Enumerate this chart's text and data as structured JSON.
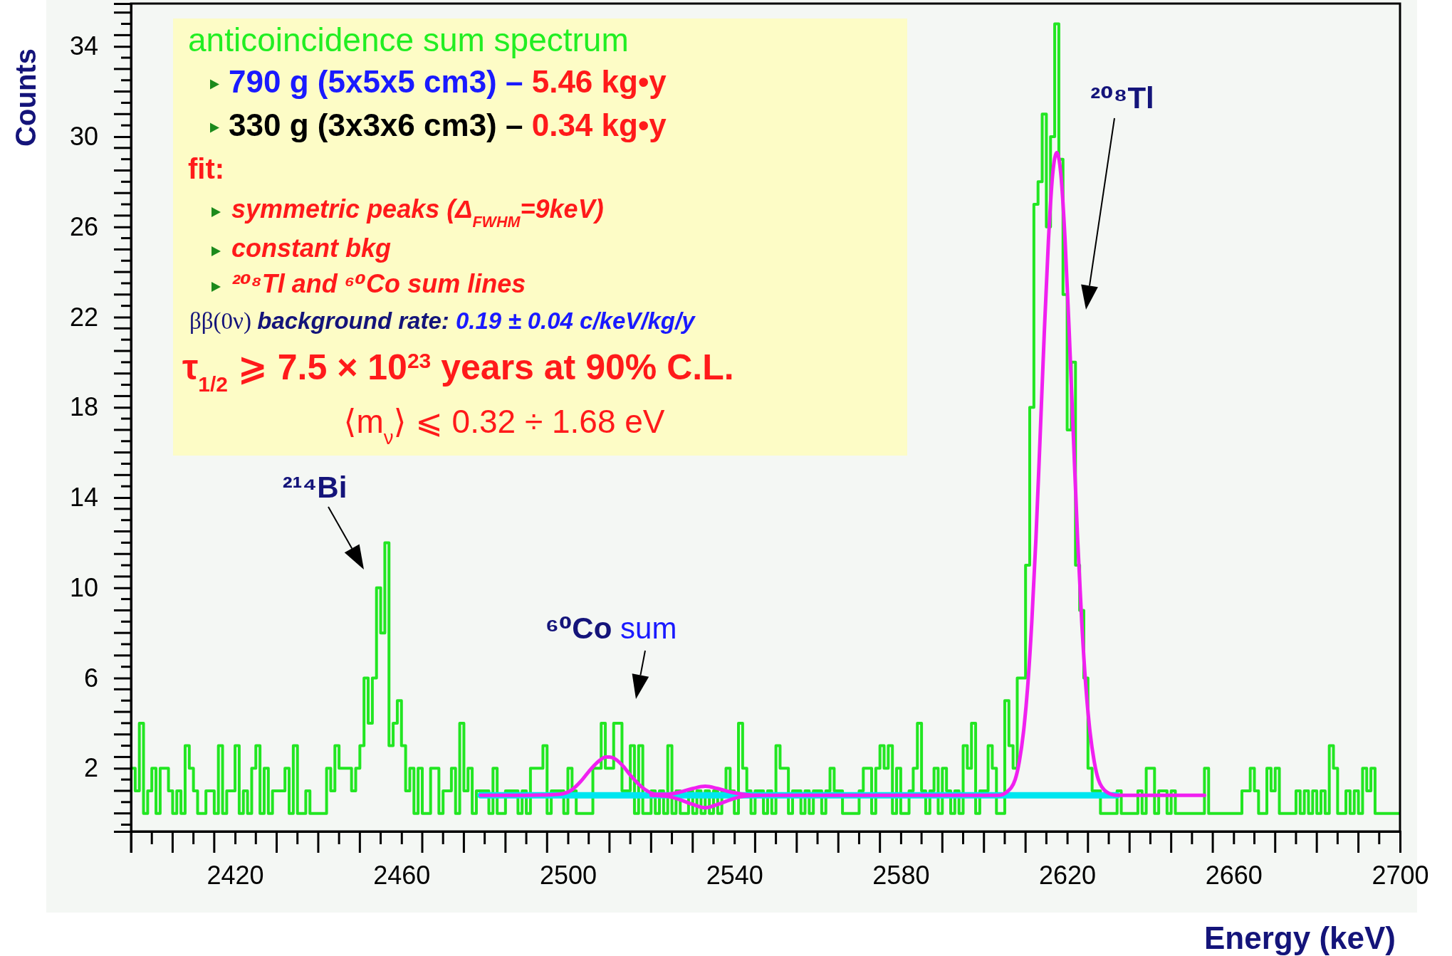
{
  "chart_data": {
    "type": "histogram",
    "xlabel": "Energy (keV)",
    "ylabel": "Counts",
    "color": "#22e622",
    "bins": [
      2395,
      2396,
      2397,
      2398,
      2399,
      2400,
      2401,
      2402,
      2403,
      2404,
      2405,
      2406,
      2407,
      2408,
      2409,
      2410,
      2411,
      2412,
      2413,
      2414,
      2415,
      2416,
      2417,
      2418,
      2419,
      2420,
      2421,
      2422,
      2423,
      2424,
      2425,
      2426,
      2427,
      2428,
      2429,
      2430,
      2431,
      2432,
      2433,
      2434,
      2435,
      2436,
      2437,
      2438,
      2439,
      2440,
      2441,
      2442,
      2443,
      2444,
      2445,
      2446,
      2447,
      2448,
      2449,
      2450,
      2451,
      2452,
      2453,
      2454,
      2455,
      2456,
      2457,
      2458,
      2459,
      2460,
      2461,
      2462,
      2463,
      2464,
      2465,
      2466,
      2467,
      2468,
      2469,
      2470,
      2471,
      2472,
      2473,
      2474,
      2475,
      2476,
      2477,
      2478,
      2479,
      2480,
      2481,
      2482,
      2483,
      2484,
      2485,
      2486,
      2487,
      2488,
      2489,
      2490,
      2491,
      2492,
      2493,
      2494,
      2495,
      2496,
      2497,
      2498,
      2499,
      2500,
      2501,
      2502,
      2503,
      2504,
      2505,
      2506,
      2507,
      2508,
      2509,
      2510,
      2511,
      2512,
      2513,
      2514,
      2515,
      2516,
      2517,
      2518,
      2519,
      2520,
      2521,
      2522,
      2523,
      2524,
      2525,
      2526,
      2527,
      2528,
      2529,
      2530,
      2531,
      2532,
      2533,
      2534,
      2535,
      2536,
      2537,
      2538,
      2539,
      2540,
      2541,
      2542,
      2543,
      2544,
      2545,
      2546,
      2547,
      2548,
      2549,
      2550,
      2551,
      2552,
      2553,
      2554,
      2555,
      2556,
      2557,
      2558,
      2559,
      2560,
      2561,
      2562,
      2563,
      2564,
      2565,
      2566,
      2567,
      2568,
      2569,
      2570,
      2571,
      2572,
      2573,
      2574,
      2575,
      2576,
      2577,
      2578,
      2579,
      2580,
      2581,
      2582,
      2583,
      2584,
      2585,
      2586,
      2587,
      2588,
      2589,
      2590,
      2591,
      2592,
      2593,
      2594,
      2595,
      2596,
      2597,
      2598,
      2599,
      2600,
      2601,
      2602,
      2603,
      2604,
      2605,
      2606,
      2607,
      2608,
      2609,
      2610,
      2611,
      2612,
      2613,
      2614,
      2615,
      2616,
      2617,
      2618,
      2619,
      2620,
      2621,
      2622,
      2623,
      2624,
      2625,
      2626,
      2627,
      2628,
      2629,
      2630,
      2631,
      2632,
      2633,
      2634,
      2635,
      2636,
      2637,
      2638,
      2639,
      2640,
      2641,
      2642,
      2643,
      2644,
      2645,
      2646,
      2647,
      2648,
      2649,
      2650,
      2651,
      2652,
      2653,
      2654,
      2655,
      2656,
      2657,
      2658,
      2659,
      2660,
      2661,
      2662,
      2663,
      2664,
      2665,
      2666,
      2667,
      2668,
      2669,
      2670,
      2671,
      2672,
      2673,
      2674,
      2675,
      2676,
      2677,
      2678,
      2679,
      2680,
      2681,
      2682,
      2683,
      2684,
      2685,
      2686,
      2687,
      2688,
      2689,
      2690,
      2691,
      2692,
      2693,
      2694,
      2695,
      2696,
      2697,
      2698,
      2699,
      2700
    ],
    "values": [
      2,
      1,
      4,
      0,
      1,
      2,
      0,
      2,
      2,
      1,
      0,
      1,
      0,
      3,
      2,
      1,
      0,
      0,
      1,
      1,
      0,
      3,
      0,
      1,
      1,
      3,
      0,
      1,
      0,
      2,
      3,
      0,
      2,
      0,
      1,
      1,
      1,
      2,
      0,
      3,
      0,
      0,
      1,
      0,
      0,
      0,
      0,
      2,
      1,
      3,
      2,
      2,
      2,
      1,
      2,
      3,
      6,
      4,
      6,
      10,
      8,
      12,
      3,
      4,
      5,
      3,
      1,
      2,
      0,
      2,
      0,
      0,
      2,
      2,
      0,
      1,
      1,
      2,
      0,
      4,
      1,
      2,
      0,
      1,
      1,
      1,
      0,
      2,
      0,
      0,
      1,
      1,
      1,
      0,
      1,
      0,
      2,
      2,
      2,
      3,
      0,
      1,
      1,
      1,
      0,
      2,
      1,
      0,
      0,
      0,
      0,
      2,
      2,
      4,
      2,
      2,
      4,
      4,
      1,
      1,
      3,
      0,
      3,
      0,
      0,
      1,
      0,
      1,
      0,
      3,
      0,
      1,
      0,
      0,
      1,
      0,
      1,
      0,
      1,
      0,
      1,
      0,
      1,
      2,
      1,
      0,
      4,
      2,
      1,
      0,
      1,
      1,
      0,
      1,
      0,
      3,
      2,
      2,
      0,
      1,
      1,
      0,
      1,
      0,
      1,
      1,
      0,
      1,
      2,
      1,
      1,
      0,
      0,
      0,
      0,
      1,
      2,
      2,
      0,
      2,
      3,
      2,
      3,
      0,
      2,
      0,
      0,
      1,
      2,
      4,
      1,
      0,
      1,
      2,
      0,
      2,
      1,
      0,
      1,
      0,
      3,
      2,
      4,
      0,
      1,
      1,
      3,
      2,
      0,
      0,
      5,
      3,
      2,
      6,
      6,
      11,
      18,
      27,
      28,
      31,
      26,
      30,
      35,
      29,
      23,
      17,
      20,
      11,
      9,
      6,
      2,
      1,
      1,
      0,
      0,
      0,
      0,
      1,
      0,
      0,
      0,
      0,
      1,
      0,
      2,
      2,
      0,
      1,
      1,
      0,
      1,
      0,
      0,
      0,
      0,
      0,
      0,
      0,
      2,
      0,
      0,
      0,
      0,
      0,
      0,
      0,
      0,
      1,
      1,
      2,
      1,
      0,
      0,
      2,
      1,
      2,
      0,
      0,
      0,
      0,
      1,
      0,
      1,
      0,
      1,
      0,
      1,
      0,
      3,
      2,
      0,
      0,
      1,
      0,
      1,
      0,
      2,
      1,
      2,
      0,
      0,
      0,
      0,
      0,
      0
    ],
    "series": [
      {
        "type": "line",
        "color": "#00e6f0",
        "x": [
          2479,
          2632
        ],
        "values": [
          0.8,
          0.8
        ]
      },
      {
        "type": "line",
        "color": "#f020f0",
        "x": [
          2479,
          2490,
          2498,
          2501,
          2503,
          2505,
          2507,
          2508,
          2509,
          2510,
          2511,
          2513,
          2515,
          2517,
          2519,
          2521,
          2524,
          2527,
          2530,
          2533,
          2536,
          2539,
          2542,
          2546,
          2560,
          2580,
          2600,
          2603.5,
          2605.5,
          2607.5,
          2608.5,
          2609.5,
          2610.5,
          2611.5,
          2612.5,
          2613.5,
          2614.5,
          2615.5,
          2616.5,
          2617.5,
          2618.5,
          2619.5,
          2620.5,
          2621.5,
          2622.5,
          2623.5,
          2624.5,
          2625.5,
          2626.5,
          2627.5,
          2629.5,
          2632,
          2653
        ],
        "values": [
          0.8,
          0.8,
          0.85,
          1.05,
          1.4,
          1.85,
          2.25,
          2.4,
          2.5,
          2.5,
          2.45,
          2.15,
          1.7,
          1.3,
          1.0,
          0.85,
          0.85,
          0.95,
          1.1,
          1.2,
          1.1,
          0.95,
          0.85,
          0.8,
          0.8,
          0.8,
          0.8,
          0.8,
          0.95,
          1.5,
          2.3,
          3.6,
          5.6,
          8.5,
          12.2,
          16.7,
          21.3,
          25.4,
          28.3,
          29.3,
          28.3,
          25.4,
          21.3,
          16.7,
          12.2,
          8.5,
          5.6,
          3.6,
          2.3,
          1.5,
          0.95,
          0.8,
          0.8
        ]
      },
      {
        "type": "line",
        "color": "#f020f0",
        "x": [
          2520,
          2524,
          2527,
          2530,
          2533,
          2536,
          2539,
          2542,
          2546
        ],
        "values": [
          0.8,
          0.75,
          0.6,
          0.4,
          0.25,
          0.4,
          0.6,
          0.75,
          0.8
        ]
      }
    ],
    "xlim": [
      2395,
      2700
    ],
    "xticks": [
      2420,
      2460,
      2500,
      2540,
      2580,
      2620,
      2660,
      2700
    ],
    "ylim": [
      -0.8,
      35.9
    ],
    "yticks": [
      2,
      6,
      10,
      14,
      18,
      22,
      26,
      30,
      34
    ],
    "annotations": [
      "anticoincidence sum spectrum",
      "790 g (5x5x5 cm3) – 5.46 kg•y",
      "330 g (3x3x6 cm3) – 0.34 kg•y",
      "fit:",
      "symmetric peaks (Δ$_{FWHM}$=9keV)",
      "constant bkg",
      "²⁰⁸Tl and ⁶⁰Co sum lines",
      "ββ(0ν) background rate: 0.19 ± 0.04 c/keV/kg/y",
      "τ$_{1/2}$ ⩾ 7.5 × 10$^{23}$ years at 90% C.L.",
      "⟨m$_{ν}$⟩ ⩽ 0.32 ÷ 1.68 eV",
      "²¹⁴Bi",
      "⁶⁰Co sum",
      "²⁰⁸Tl"
    ]
  }
}
